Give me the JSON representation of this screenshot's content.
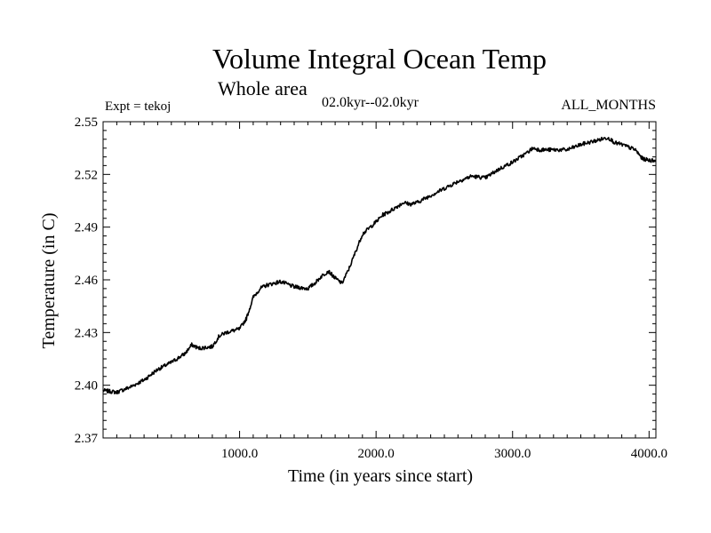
{
  "chart_data": {
    "type": "line",
    "title": "Volume Integral Ocean Temp",
    "subtitle": "Whole area",
    "period": "02.0kyr--02.0kyr",
    "experiment": "Expt = tekoj",
    "months": "ALL_MONTHS",
    "xlabel": "Time (in years since start)",
    "ylabel": "Temperature (in C)",
    "xlim": [
      0,
      4050
    ],
    "ylim": [
      2.37,
      2.55
    ],
    "x_ticks": [
      "1000.0",
      "2000.0",
      "3000.0",
      "4000.0"
    ],
    "x_tick_values": [
      1000,
      2000,
      3000,
      4000
    ],
    "y_ticks": [
      "2.37",
      "2.40",
      "2.43",
      "2.46",
      "2.49",
      "2.52",
      "2.55"
    ],
    "y_tick_values": [
      2.37,
      2.4,
      2.43,
      2.46,
      2.49,
      2.52,
      2.55
    ],
    "grid": false,
    "series": [
      {
        "name": "Volume integral ocean temperature",
        "x": [
          0,
          100,
          200,
          300,
          400,
          500,
          600,
          650,
          700,
          800,
          850,
          900,
          1000,
          1050,
          1100,
          1150,
          1200,
          1300,
          1400,
          1500,
          1550,
          1600,
          1650,
          1700,
          1750,
          1800,
          1850,
          1900,
          2000,
          2050,
          2100,
          2200,
          2250,
          2300,
          2400,
          2500,
          2600,
          2700,
          2800,
          2900,
          3000,
          3100,
          3150,
          3200,
          3300,
          3400,
          3500,
          3600,
          3700,
          3750,
          3800,
          3900,
          3950,
          4000,
          4050
        ],
        "y": [
          2.397,
          2.396,
          2.399,
          2.403,
          2.409,
          2.413,
          2.418,
          2.423,
          2.421,
          2.422,
          2.428,
          2.43,
          2.432,
          2.438,
          2.45,
          2.455,
          2.457,
          2.459,
          2.456,
          2.455,
          2.458,
          2.462,
          2.465,
          2.461,
          2.458,
          2.466,
          2.476,
          2.486,
          2.493,
          2.497,
          2.499,
          2.504,
          2.503,
          2.504,
          2.508,
          2.512,
          2.516,
          2.519,
          2.518,
          2.523,
          2.527,
          2.532,
          2.535,
          2.534,
          2.534,
          2.534,
          2.537,
          2.539,
          2.541,
          2.538,
          2.537,
          2.534,
          2.529,
          2.528,
          2.528
        ]
      }
    ]
  }
}
